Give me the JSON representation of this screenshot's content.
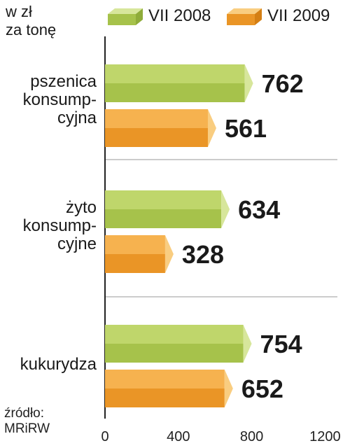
{
  "chart_data": {
    "type": "bar",
    "orientation": "horizontal",
    "title": "",
    "unit_label_lines": [
      "w zł",
      "za tonę"
    ],
    "categories": [
      {
        "lines": [
          "pszenica",
          "konsump-",
          "cyjna"
        ]
      },
      {
        "lines": [
          "żyto",
          "konsump-",
          "cyjne"
        ]
      },
      {
        "lines": [
          "kukurydza"
        ]
      }
    ],
    "series": [
      {
        "name": "VII 2008",
        "values": [
          762,
          634,
          754
        ]
      },
      {
        "name": "VII 2009",
        "values": [
          561,
          328,
          652
        ]
      }
    ],
    "xlim": [
      0,
      1200
    ],
    "xticks": [
      "0",
      "400",
      "800",
      "1200"
    ],
    "grid": "separator lines between categories",
    "legend_position": "top"
  },
  "source_lines": [
    "źródło:",
    "MRiRW"
  ],
  "colors": {
    "series_2008": {
      "top": "#bfd66b",
      "front": "#a6c24b",
      "end": "#d7e69b"
    },
    "series_2009": {
      "top": "#f6b24f",
      "front": "#ea9526",
      "end": "#f9cd80"
    },
    "axis": "#222222",
    "separator": "#999999"
  }
}
